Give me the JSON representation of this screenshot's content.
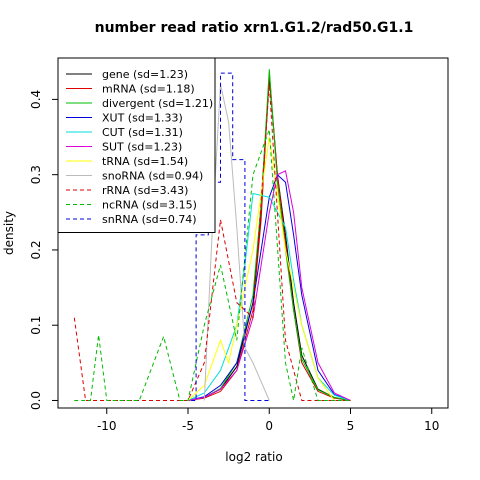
{
  "chart_data": {
    "type": "line",
    "title": "number read ratio xrn1.G1.2/rad50.G1.1",
    "xlabel": "log2 ratio",
    "ylabel": "density",
    "xlim": [
      -13,
      11
    ],
    "ylim": [
      -0.01,
      0.455
    ],
    "xticks": [
      -10,
      -5,
      0,
      5,
      10
    ],
    "xtick_labels": [
      "-10",
      "-5",
      "0",
      "5",
      "10"
    ],
    "yticks": [
      0.0,
      0.1,
      0.2,
      0.3,
      0.4
    ],
    "ytick_labels": [
      "0.0",
      "0.1",
      "0.2",
      "0.3",
      "0.4"
    ],
    "legend_position": "top-left",
    "series": [
      {
        "name": "gene (sd=1.23)",
        "color": "#000000",
        "dash": "solid",
        "x": [
          -5,
          -4,
          -3,
          -2,
          -1,
          -0.5,
          0,
          0.5,
          1,
          1.5,
          2,
          3,
          4,
          5
        ],
        "y": [
          0,
          0.004,
          0.015,
          0.045,
          0.13,
          0.25,
          0.43,
          0.3,
          0.22,
          0.13,
          0.06,
          0.015,
          0.004,
          0
        ]
      },
      {
        "name": "mRNA (sd=1.18)",
        "color": "#DF0000",
        "dash": "solid",
        "x": [
          -5,
          -4,
          -3,
          -2,
          -1,
          -0.5,
          0,
          0.5,
          1,
          1.5,
          2,
          3,
          4,
          5
        ],
        "y": [
          0,
          0.003,
          0.012,
          0.04,
          0.12,
          0.24,
          0.435,
          0.3,
          0.21,
          0.12,
          0.05,
          0.012,
          0.003,
          0
        ]
      },
      {
        "name": "divergent (sd=1.21)",
        "color": "#00BB00",
        "dash": "solid",
        "x": [
          -5,
          -4,
          -3,
          -2,
          -1,
          -0.5,
          0,
          0.5,
          1,
          1.5,
          2,
          3,
          4,
          5
        ],
        "y": [
          0,
          0.004,
          0.016,
          0.05,
          0.14,
          0.26,
          0.44,
          0.29,
          0.2,
          0.12,
          0.055,
          0.014,
          0.004,
          0
        ]
      },
      {
        "name": "XUT (sd=1.33)",
        "color": "#0000DD",
        "dash": "solid",
        "x": [
          -5,
          -4,
          -3,
          -2,
          -1,
          0,
          0.5,
          1,
          1.5,
          2,
          3,
          4,
          5
        ],
        "y": [
          0,
          0.005,
          0.02,
          0.05,
          0.13,
          0.27,
          0.3,
          0.29,
          0.22,
          0.14,
          0.04,
          0.008,
          0
        ]
      },
      {
        "name": "CUT (sd=1.31)",
        "color": "#00DDDD",
        "dash": "solid",
        "x": [
          -5,
          -4,
          -3,
          -2,
          -1.5,
          -1,
          0,
          1,
          1.5,
          2,
          3,
          4,
          5
        ],
        "y": [
          0,
          0.01,
          0.04,
          0.1,
          0.18,
          0.275,
          0.27,
          0.23,
          0.16,
          0.1,
          0.03,
          0.007,
          0
        ]
      },
      {
        "name": "SUT (sd=1.23)",
        "color": "#DD00DD",
        "dash": "solid",
        "x": [
          -5,
          -4,
          -3,
          -2,
          -1,
          0,
          0.5,
          1,
          1.5,
          2,
          3,
          4,
          5
        ],
        "y": [
          0,
          0.004,
          0.015,
          0.04,
          0.11,
          0.25,
          0.3,
          0.305,
          0.25,
          0.15,
          0.05,
          0.01,
          0
        ]
      },
      {
        "name": "tRNA (sd=1.54)",
        "color": "#FFFF00",
        "dash": "solid",
        "x": [
          -5,
          -4,
          -3,
          -2.5,
          -2,
          -1,
          0,
          1,
          2,
          3,
          4
        ],
        "y": [
          0,
          0.02,
          0.08,
          0.05,
          0.1,
          0.2,
          0.35,
          0.2,
          0.1,
          0.03,
          0
        ]
      },
      {
        "name": "snoRNA (sd=0.94)",
        "color": "#BBBBBB",
        "dash": "solid",
        "x": [
          -4,
          -3.5,
          -3,
          -2.5,
          -2,
          -1.5,
          -1,
          0
        ],
        "y": [
          0,
          0.23,
          0.42,
          0.37,
          0.23,
          0.07,
          0.05,
          0
        ]
      },
      {
        "name": "rRNA (sd=3.43)",
        "color": "#DD0000",
        "dash": "dashed",
        "x": [
          -12,
          -11.3,
          -10,
          -6,
          -5,
          -4,
          -3,
          -2,
          -1,
          0,
          1,
          2,
          3,
          5
        ],
        "y": [
          0.11,
          0,
          0,
          0,
          0,
          0.05,
          0.24,
          0.13,
          0.11,
          0.42,
          0.08,
          0,
          0,
          0
        ]
      },
      {
        "name": "ncRNA (sd=3.15)",
        "color": "#00BB00",
        "dash": "dashed",
        "x": [
          -12,
          -11,
          -10.5,
          -10,
          -8,
          -6.5,
          -5.5,
          -5,
          -4,
          -3,
          -2,
          -1,
          0,
          1,
          1.5,
          2,
          3,
          5
        ],
        "y": [
          0,
          0,
          0.087,
          0,
          0,
          0.085,
          0,
          0,
          0.1,
          0.18,
          0.08,
          0.3,
          0.36,
          0.05,
          0,
          0.07,
          0,
          0
        ]
      },
      {
        "name": "snRNA (sd=0.74)",
        "color": "#0000DD",
        "dash": "dashed",
        "x": [
          -4.8,
          -4.5,
          -4.5,
          -3.75,
          -3.75,
          -3.0,
          -3.0,
          -2.25,
          -2.25,
          -1.5,
          -1.5,
          -0.75,
          -0.75,
          0
        ],
        "y": [
          0,
          0,
          0.22,
          0.22,
          0.29,
          0.29,
          0.435,
          0.435,
          0.32,
          0.32,
          0,
          0,
          0,
          0
        ]
      }
    ]
  }
}
